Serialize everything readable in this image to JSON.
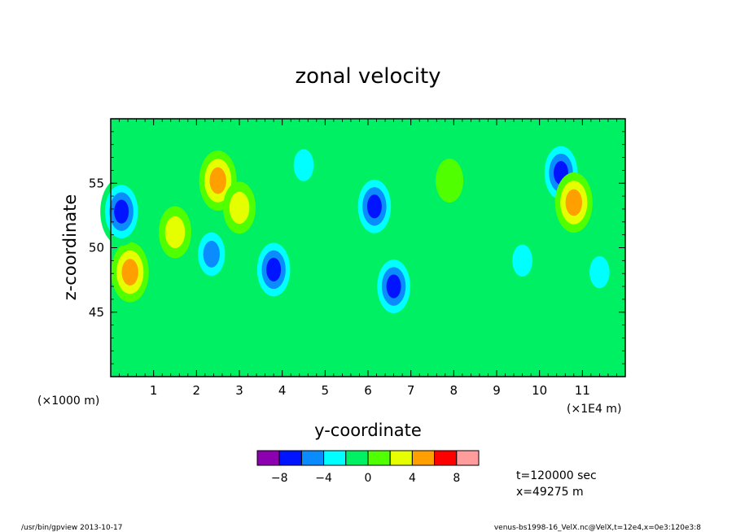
{
  "chart_data": {
    "type": "heatmap",
    "title": "zonal velocity",
    "xlabel": "y-coordinate",
    "ylabel": "z-coordinate",
    "x_unit_left": "(×1000 m)",
    "x_unit_right": "(×1E4 m)",
    "xlim": [
      0,
      12
    ],
    "ylim": [
      40,
      60
    ],
    "x_ticks": [
      1,
      2,
      3,
      4,
      5,
      6,
      7,
      8,
      9,
      10,
      11
    ],
    "y_ticks": [
      45,
      50,
      55
    ],
    "colorbar": {
      "levels": [
        -10,
        -8,
        -6,
        -4,
        -2,
        0,
        2,
        4,
        6,
        8,
        10
      ],
      "tick_values": [
        -8,
        -4,
        0,
        4,
        8
      ],
      "tick_labels": [
        "−8",
        "−4",
        "0",
        "4",
        "8"
      ],
      "colors": [
        "#8c00b0",
        "#0014ff",
        "#0a8cff",
        "#00ffff",
        "#00f064",
        "#50ff00",
        "#e6ff00",
        "#ffa000",
        "#ff0000",
        "#ff9c9c"
      ]
    },
    "features": [
      {
        "y": 0.45,
        "z": 48.1,
        "value": 6
      },
      {
        "y": 0.25,
        "z": 52.8,
        "value": -6
      },
      {
        "y": 2.5,
        "z": 55.2,
        "value": 6
      },
      {
        "y": 3.0,
        "z": 53.1,
        "value": 5
      },
      {
        "y": 4.5,
        "z": 56.4,
        "value": -3
      },
      {
        "y": 3.8,
        "z": 48.3,
        "value": -6
      },
      {
        "y": 2.35,
        "z": 49.5,
        "value": -5
      },
      {
        "y": 1.5,
        "z": 51.2,
        "value": 5
      },
      {
        "y": 6.15,
        "z": 53.2,
        "value": -6
      },
      {
        "y": 7.9,
        "z": 55.2,
        "value": 3
      },
      {
        "y": 10.5,
        "z": 55.8,
        "value": -7
      },
      {
        "y": 10.8,
        "z": 53.5,
        "value": 7
      },
      {
        "y": 11.4,
        "z": 48.1,
        "value": -3
      },
      {
        "y": 9.6,
        "z": 49.0,
        "value": -3
      },
      {
        "y": 6.6,
        "z": 47.0,
        "value": -6
      }
    ]
  },
  "info": {
    "time": "t=120000 sec",
    "xpos": "x=49275 m"
  },
  "footer": {
    "left": "/usr/bin/gpview  2013-10-17",
    "right": "venus-bs1998-16_VelX.nc@VelX,t=12e4,x=0e3:120e3:8"
  }
}
